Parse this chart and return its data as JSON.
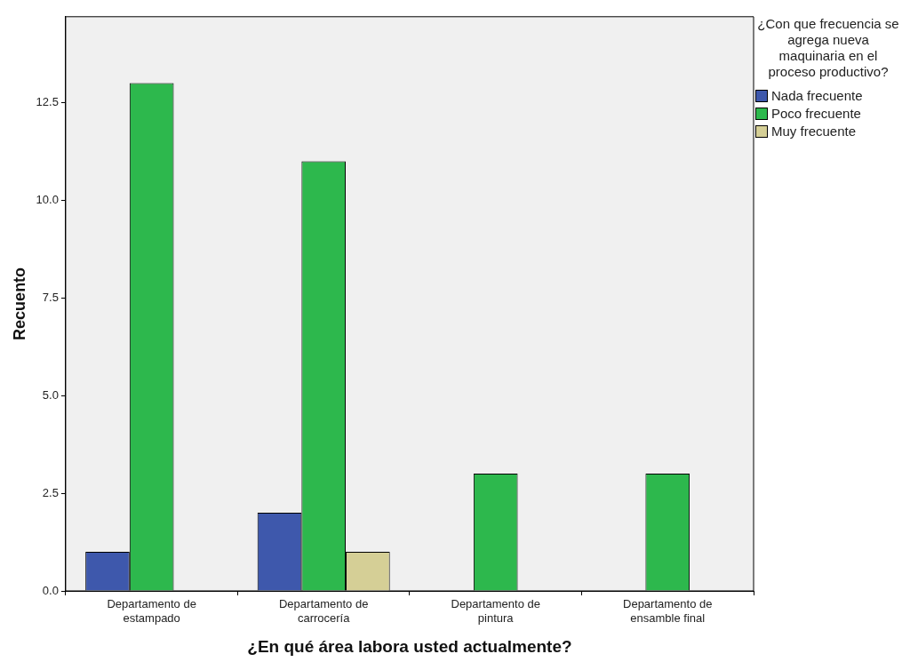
{
  "chart_data": {
    "type": "bar",
    "xlabel": "¿En qué área labora usted actualmente?",
    "ylabel": "Recuento",
    "legend_title": "¿Con que frecuencia se agrega nueva maquinaria en el proceso productivo?",
    "categories": [
      "Departamento de estampado",
      "Departamento de carrocería",
      "Departamento de pintura",
      "Departamento de ensamble final"
    ],
    "series": [
      {
        "name": "Nada frecuente",
        "color": "#3e58ac",
        "values": [
          1,
          2,
          null,
          null
        ]
      },
      {
        "name": "Poco frecuente",
        "color": "#2db84d",
        "values": [
          13,
          11,
          3,
          3
        ]
      },
      {
        "name": "Muy frecuente",
        "color": "#d5cf96",
        "values": [
          null,
          1,
          null,
          null
        ]
      }
    ],
    "ylim": [
      0,
      14.7
    ],
    "yticks": [
      {
        "value": 0,
        "label": "0.0"
      },
      2.5,
      {
        "value": 5,
        "label": "5.0"
      },
      7.5,
      {
        "value": 10,
        "label": "10.0"
      },
      12.5
    ],
    "grid": false,
    "legend": "right"
  }
}
